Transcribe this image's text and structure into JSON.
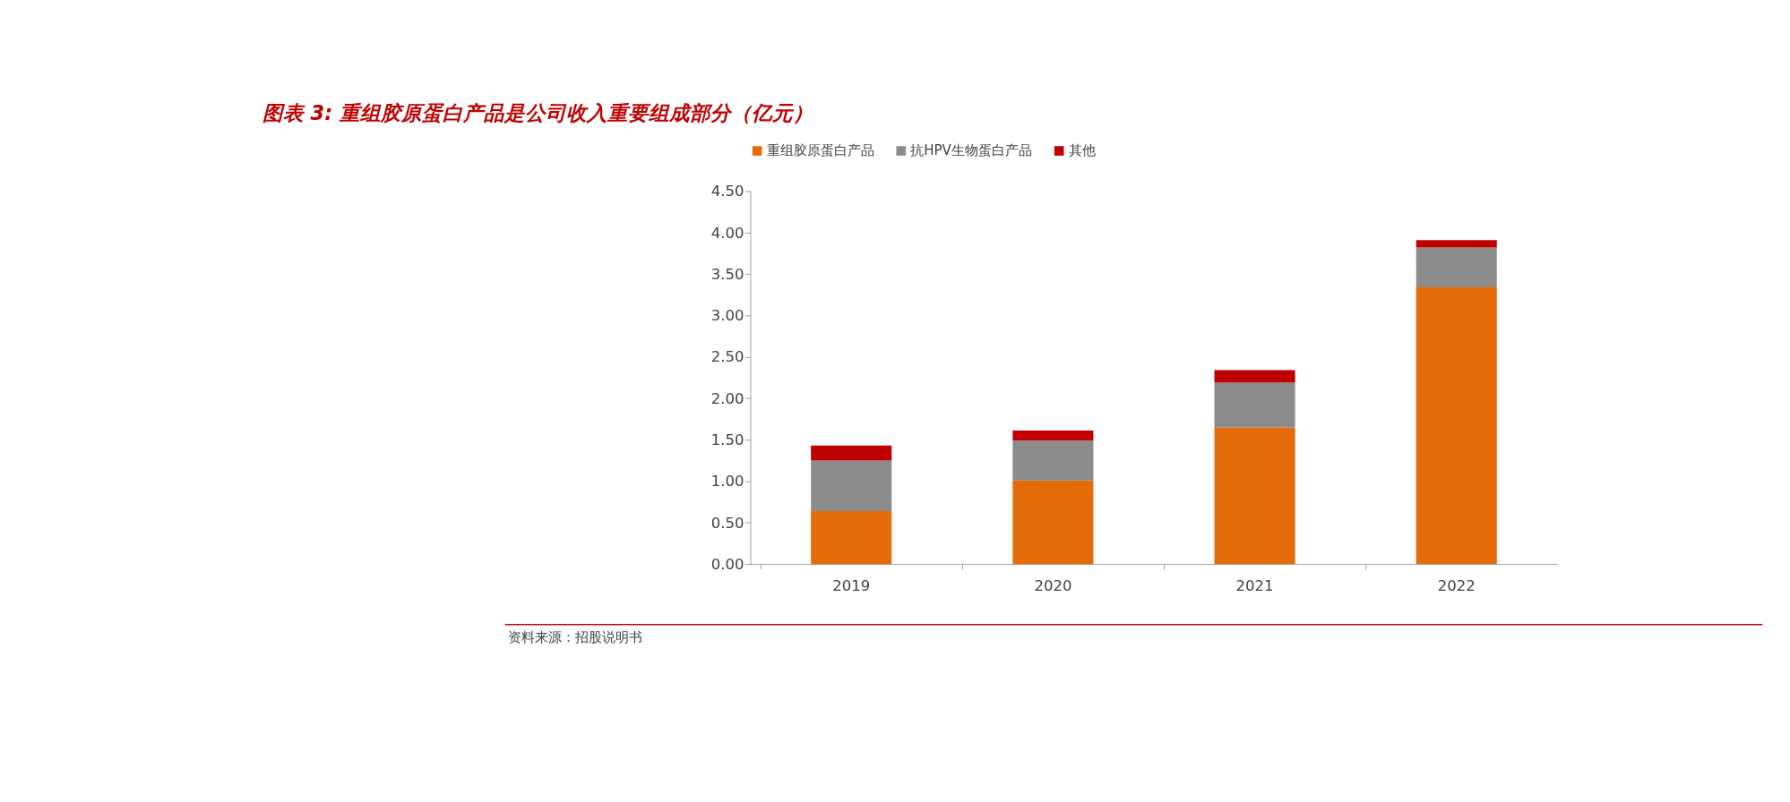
{
  "chart_data": {
    "type": "bar",
    "stacked": true,
    "title": "图表 3:  重组胶原蛋白产品是公司收入重要组成部分（亿元）",
    "categories": [
      "2019",
      "2020",
      "2021",
      "2022"
    ],
    "series": [
      {
        "name": "重组胶原蛋白产品",
        "color": "#e46c0a",
        "values": [
          0.64,
          1.01,
          1.65,
          3.34
        ]
      },
      {
        "name": "抗HPV生物蛋白产品",
        "color": "#8c8c8c",
        "values": [
          0.61,
          0.48,
          0.54,
          0.48
        ]
      },
      {
        "name": "其他",
        "color": "#c00000",
        "values": [
          0.18,
          0.12,
          0.15,
          0.09
        ]
      }
    ],
    "ylim": [
      0,
      4.5
    ],
    "yticks": [
      {
        "value": 0,
        "label": "0.00"
      },
      {
        "value": 0.5,
        "label": "0.50"
      },
      {
        "value": 1,
        "label": "1.00"
      },
      {
        "value": 1.5,
        "label": "1.50"
      },
      {
        "value": 2,
        "label": "2.00"
      },
      {
        "value": 2.5,
        "label": "2.50"
      },
      {
        "value": 3,
        "label": "3.00"
      },
      {
        "value": 3.5,
        "label": "3.50"
      },
      {
        "value": 4,
        "label": "4.00"
      },
      {
        "value": 4.5,
        "label": "4.50"
      }
    ],
    "grid": false,
    "legend": "top",
    "annotations": [
      "资料来源：招股说明书"
    ]
  }
}
